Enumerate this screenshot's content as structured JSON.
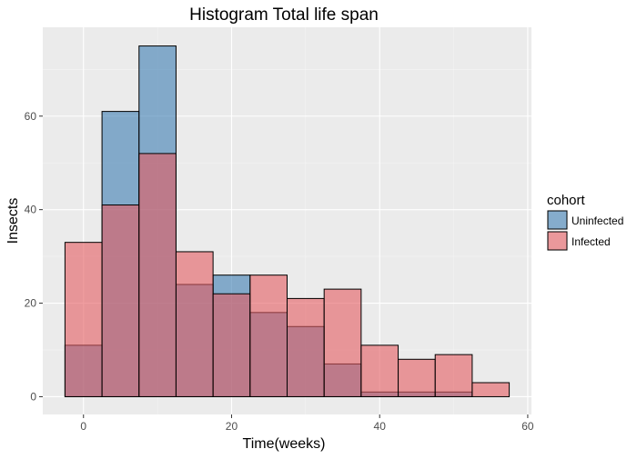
{
  "chart_data": {
    "type": "histogram",
    "title": "Histogram Total life span",
    "xlabel": "Time(weeks)",
    "ylabel": "Insects",
    "xlim": [
      -5.5,
      60.5
    ],
    "ylim": [
      -3.8,
      79
    ],
    "x_ticks": [
      0,
      20,
      40,
      60
    ],
    "y_ticks": [
      0,
      20,
      40,
      60
    ],
    "bin_width": 5,
    "bins": [
      -2.5,
      2.5,
      7.5,
      12.5,
      17.5,
      22.5,
      27.5,
      32.5,
      37.5,
      42.5,
      47.5,
      52.5,
      57.5
    ],
    "grid": true,
    "legend": {
      "title": "cohort",
      "position": "right"
    },
    "series": [
      {
        "name": "Uninfected",
        "color": "#3C7DB3",
        "values": [
          11,
          61,
          75,
          24,
          26,
          18,
          15,
          7,
          1,
          1,
          1,
          0
        ]
      },
      {
        "name": "Infected",
        "color": "#E45B60",
        "values": [
          33,
          41,
          52,
          31,
          22,
          26,
          21,
          23,
          11,
          8,
          9,
          3
        ]
      }
    ]
  }
}
